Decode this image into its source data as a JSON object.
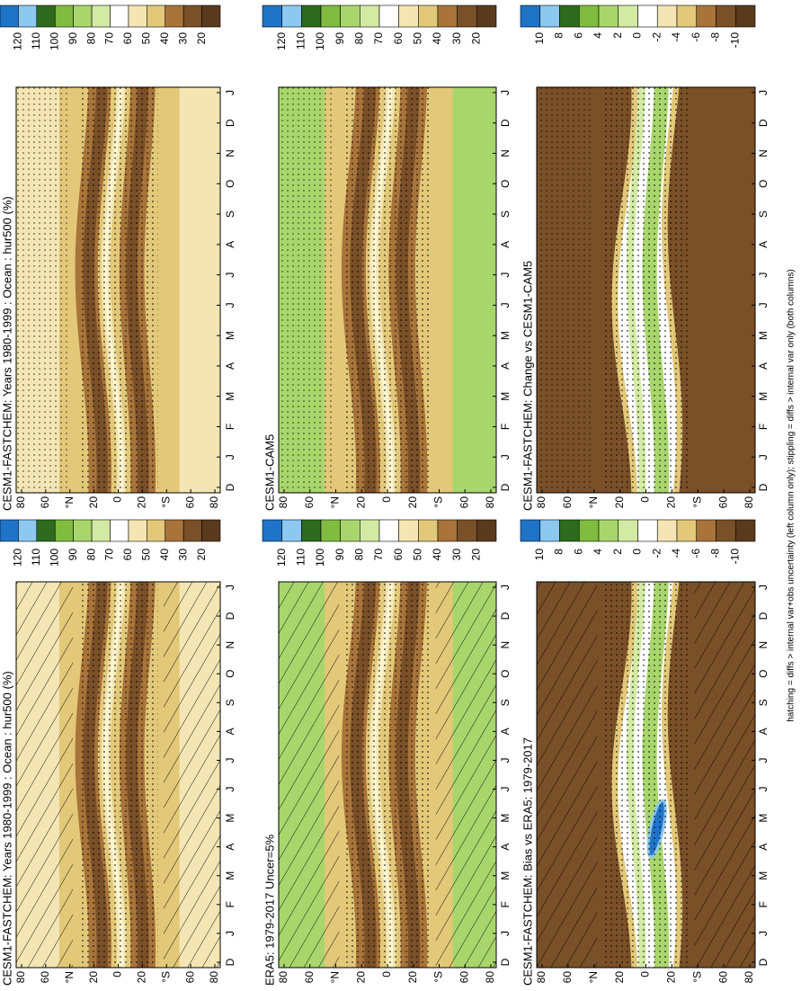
{
  "panels": [
    {
      "title": "CESM1-FASTCHEM: Years 1980-1999 : Ocean : hur500 (%)",
      "colorbar": [
        120,
        110,
        100,
        90,
        80,
        70,
        60,
        50,
        40,
        30,
        20
      ]
    },
    {
      "title": "CESM1-FASTCHEM: Years 1980-1999 : Ocean : hur500 (%)",
      "colorbar": [
        120,
        110,
        100,
        90,
        80,
        70,
        60,
        50,
        40,
        30,
        20
      ]
    },
    {
      "title": "ERA5: 1979-2017 Uncer=5%",
      "colorbar": [
        120,
        110,
        100,
        90,
        80,
        70,
        60,
        50,
        40,
        30,
        20
      ]
    },
    {
      "title": "CESM1-CAM5",
      "colorbar": [
        120,
        110,
        100,
        90,
        80,
        70,
        60,
        50,
        40,
        30,
        20
      ]
    },
    {
      "title": "CESM1-FASTCHEM: Bias vs ERA5: 1979-2017",
      "colorbar": [
        10,
        8,
        6,
        4,
        2,
        0,
        -2,
        -4,
        -6,
        -8,
        -10
      ]
    },
    {
      "title": "CESM1-FASTCHEM: Change vs CESM1-CAM5",
      "colorbar": [
        10,
        8,
        6,
        4,
        2,
        0,
        -2,
        -4,
        -6,
        -8,
        -10
      ]
    }
  ],
  "months": [
    "D",
    "J",
    "F",
    "M",
    "A",
    "M",
    "J",
    "J",
    "A",
    "S",
    "O",
    "N",
    "D",
    "J"
  ],
  "latitudes": [
    "80",
    "60",
    "°N",
    "20",
    "0",
    "20",
    "°S",
    "60",
    "80"
  ],
  "colors": [
    "#1f74c8",
    "#8cc8f0",
    "#2e6b1e",
    "#4f9a2c",
    "#7fbc40",
    "#a9d66c",
    "#d3eaa4",
    "#ffffff",
    "#f4e6b4",
    "#e2c878",
    "#c99a48",
    "#a8743a",
    "#7a5028",
    "#5a3a1c"
  ],
  "footnote": "hatching = diffs > internal var+obs uncertainty (left column only); stippling = diffs > internal var only (both columns)"
}
